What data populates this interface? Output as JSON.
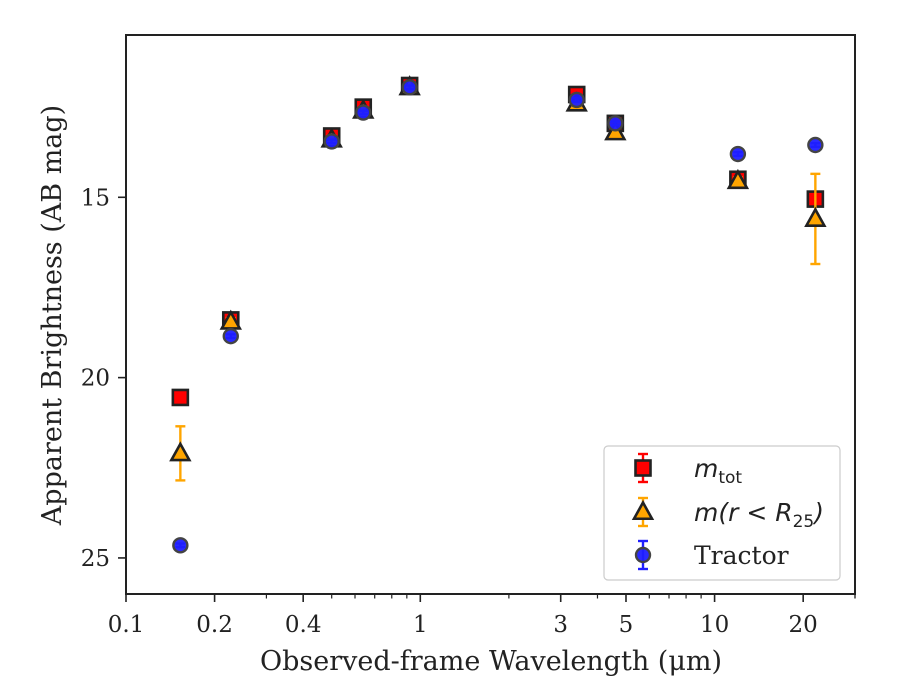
{
  "chart_data": {
    "type": "scatter",
    "xlabel": "Observed-frame Wavelength (μm)",
    "ylabel": "Apparent Brightness (AB mag)",
    "xscale": "log",
    "xlim": [
      0.1,
      30
    ],
    "ylim": [
      26.0,
      10.5
    ],
    "y_inverted": true,
    "grid": false,
    "legend_position": "lower-right",
    "x_ticks": [
      {
        "value": 0.1,
        "label": "0.1"
      },
      {
        "value": 0.2,
        "label": "0.2"
      },
      {
        "value": 0.4,
        "label": "0.4"
      },
      {
        "value": 1,
        "label": "1"
      },
      {
        "value": 3,
        "label": "3"
      },
      {
        "value": 5,
        "label": "5"
      },
      {
        "value": 10,
        "label": "10"
      },
      {
        "value": 20,
        "label": "20"
      }
    ],
    "y_ticks": [
      {
        "value": 15,
        "label": "15"
      },
      {
        "value": 20,
        "label": "20"
      },
      {
        "value": 25,
        "label": "25"
      }
    ],
    "series": [
      {
        "name": "m_tot",
        "legend_main": "m",
        "legend_sub": "tot",
        "marker": "square",
        "color": "#ff0000",
        "edge_color": "#222222",
        "error_color": "#ff0000",
        "points": [
          {
            "x": 0.153,
            "y": 20.55,
            "err": 0.0
          },
          {
            "x": 0.227,
            "y": 18.4,
            "err": 0.15
          },
          {
            "x": 0.5,
            "y": 13.3,
            "err": 0.15
          },
          {
            "x": 0.64,
            "y": 12.5,
            "err": 0.15
          },
          {
            "x": 0.92,
            "y": 11.9,
            "err": 0.1
          },
          {
            "x": 3.4,
            "y": 12.15,
            "err": 0.12
          },
          {
            "x": 4.6,
            "y": 12.95,
            "err": 0.12
          },
          {
            "x": 12.0,
            "y": 14.5,
            "err": 0.1
          },
          {
            "x": 22.0,
            "y": 15.05,
            "err": 0.1
          }
        ]
      },
      {
        "name": "m(r<R25)",
        "legend_main": "m(r < R",
        "legend_sub": "25",
        "legend_tail": ")",
        "marker": "triangle",
        "color": "#ffa500",
        "edge_color": "#222222",
        "error_color": "#ffa500",
        "points": [
          {
            "x": 0.153,
            "y": 22.1,
            "err": 0.75
          },
          {
            "x": 0.227,
            "y": 18.45,
            "err": 0.1
          },
          {
            "x": 0.5,
            "y": 13.4,
            "err": 0.1
          },
          {
            "x": 0.64,
            "y": 12.6,
            "err": 0.1
          },
          {
            "x": 0.92,
            "y": 11.95,
            "err": 0.1
          },
          {
            "x": 3.4,
            "y": 12.4,
            "err": 0.1
          },
          {
            "x": 4.6,
            "y": 13.2,
            "err": 0.1
          },
          {
            "x": 12.0,
            "y": 14.55,
            "err": 0.1
          },
          {
            "x": 22.0,
            "y": 15.6,
            "err": 1.25
          }
        ]
      },
      {
        "name": "Tractor",
        "marker": "circle",
        "color": "#1f1fff",
        "edge_color": "#444444",
        "error_color": "#1f1fff",
        "points": [
          {
            "x": 0.153,
            "y": 24.65,
            "err": 0.05
          },
          {
            "x": 0.227,
            "y": 18.85,
            "err": 0.05
          },
          {
            "x": 0.5,
            "y": 13.45,
            "err": 0.05
          },
          {
            "x": 0.64,
            "y": 12.65,
            "err": 0.05
          },
          {
            "x": 0.92,
            "y": 11.95,
            "err": 0.05
          },
          {
            "x": 3.4,
            "y": 12.3,
            "err": 0.05
          },
          {
            "x": 4.6,
            "y": 12.95,
            "err": 0.05
          },
          {
            "x": 12.0,
            "y": 13.8,
            "err": 0.05
          },
          {
            "x": 22.0,
            "y": 13.55,
            "err": 0.05
          }
        ]
      }
    ]
  }
}
